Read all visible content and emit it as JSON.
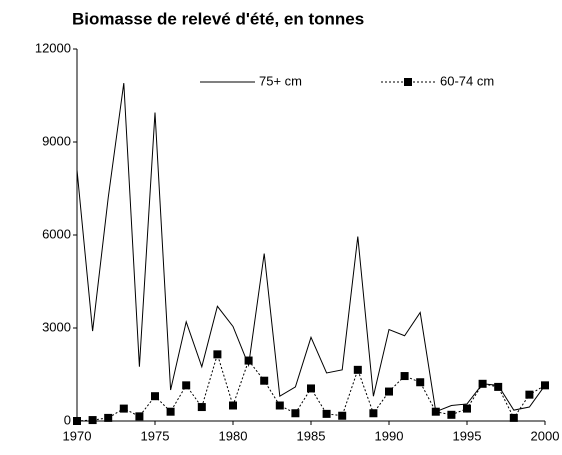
{
  "chart_data": {
    "type": "line",
    "title": "Biomasse de relevé d'été, en tonnes",
    "x": [
      1970,
      1971,
      1972,
      1973,
      1974,
      1975,
      1976,
      1977,
      1978,
      1979,
      1980,
      1981,
      1982,
      1983,
      1984,
      1985,
      1986,
      1987,
      1988,
      1989,
      1990,
      1991,
      1992,
      1993,
      1994,
      1995,
      1996,
      1997,
      1998,
      1999,
      2000
    ],
    "series": [
      {
        "name": "75+ cm",
        "color": "#000000",
        "style": "solid",
        "marker": "none",
        "values": [
          8100,
          2900,
          7200,
          10900,
          1750,
          9950,
          1000,
          3200,
          1750,
          3700,
          3050,
          1800,
          5400,
          800,
          1100,
          2700,
          1550,
          1650,
          5950,
          800,
          2950,
          2750,
          3500,
          300,
          500,
          550,
          1200,
          1150,
          350,
          450,
          1150
        ]
      },
      {
        "name": "60-74 cm",
        "color": "#000000",
        "style": "dotted",
        "marker": "square",
        "values": [
          0,
          30,
          100,
          400,
          150,
          800,
          300,
          1150,
          450,
          2150,
          500,
          1950,
          1300,
          500,
          250,
          1050,
          230,
          170,
          1650,
          250,
          950,
          1450,
          1250,
          300,
          200,
          400,
          1200,
          1100,
          100,
          850,
          1150
        ]
      }
    ],
    "xlim": [
      1970,
      2000
    ],
    "xticks": [
      1970,
      1975,
      1980,
      1985,
      1990,
      1995,
      2000
    ],
    "ylim": [
      0,
      12000
    ],
    "yticks": [
      0,
      3000,
      6000,
      9000,
      12000
    ],
    "grid": false,
    "legend": "top"
  }
}
